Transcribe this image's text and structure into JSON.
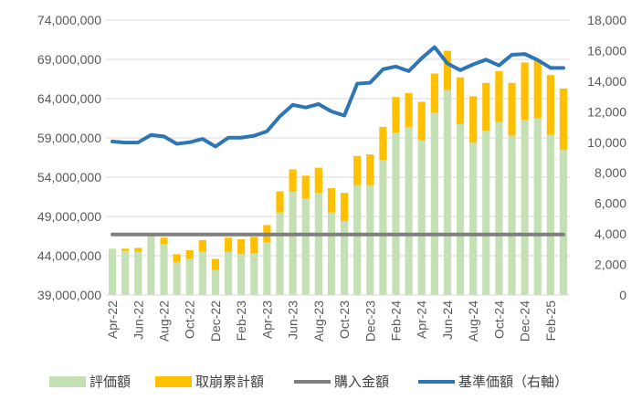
{
  "chart_data": {
    "type": "bar+line",
    "months": [
      "Apr-22",
      "May-22",
      "Jun-22",
      "Jul-22",
      "Aug-22",
      "Sep-22",
      "Oct-22",
      "Nov-22",
      "Dec-22",
      "Jan-23",
      "Feb-23",
      "Mar-23",
      "Apr-23",
      "May-23",
      "Jun-23",
      "Jul-23",
      "Aug-23",
      "Sep-23",
      "Oct-23",
      "Nov-23",
      "Dec-23",
      "Jan-24",
      "Feb-24",
      "Mar-24",
      "Apr-24",
      "May-24",
      "Jun-24",
      "Jul-24",
      "Aug-24",
      "Sep-24",
      "Oct-24",
      "Nov-24",
      "Dec-24",
      "Jan-25",
      "Feb-25",
      "Mar-25"
    ],
    "x_tick_labels": [
      "Apr-22",
      "Jun-22",
      "Aug-22",
      "Oct-22",
      "Dec-22",
      "Feb-23",
      "Apr-23",
      "Jun-23",
      "Aug-23",
      "Oct-23",
      "Dec-23",
      "Feb-24",
      "Apr-24",
      "Jun-24",
      "Aug-24",
      "Oct-24",
      "Dec-24",
      "Feb-25"
    ],
    "y_left": {
      "min": 39000000,
      "max": 74000000,
      "step": 5000000,
      "tick_labels": [
        "39,000,000",
        "44,000,000",
        "49,000,000",
        "54,000,000",
        "59,000,000",
        "64,000,000",
        "69,000,000",
        "74,000,000"
      ]
    },
    "y_right": {
      "min": 0,
      "max": 18000,
      "step": 2000,
      "tick_labels": [
        "0",
        "2,000",
        "4,000",
        "6,000",
        "8,000",
        "10,000",
        "12,000",
        "14,000",
        "16,000",
        "18,000"
      ]
    },
    "grid": "horizontal",
    "legend_position": "bottom",
    "series": [
      {
        "name": "評価額",
        "kind": "stacked-bar",
        "axis": "left",
        "color": "#c5e0b4",
        "values": [
          44900000,
          44600000,
          44500000,
          46600000,
          45500000,
          43200000,
          43600000,
          44500000,
          42200000,
          44500000,
          44200000,
          44300000,
          45700000,
          49500000,
          52200000,
          51300000,
          52000000,
          49500000,
          48400000,
          53000000,
          53000000,
          56200000,
          59700000,
          60400000,
          58700000,
          62200000,
          65100000,
          60800000,
          58400000,
          59900000,
          61000000,
          59300000,
          61300000,
          61500000,
          59400000,
          57500000
        ]
      },
      {
        "name": "取崩累計額",
        "kind": "stacked-bar",
        "axis": "left",
        "color": "#ffc000",
        "values": [
          0,
          300000,
          500000,
          0,
          800000,
          1000000,
          1100000,
          1500000,
          1400000,
          1800000,
          1900000,
          2100000,
          2200000,
          2700000,
          2800000,
          2900000,
          3200000,
          3100000,
          3600000,
          3700000,
          3900000,
          4200000,
          4500000,
          4300000,
          4900000,
          5000000,
          5000000,
          5900000,
          5900000,
          6100000,
          6500000,
          6700000,
          7300000,
          7400000,
          7600000,
          7800000
        ]
      },
      {
        "name": "購入金額",
        "kind": "line",
        "axis": "left",
        "color": "#7f7f7f",
        "values": [
          46700000,
          46700000,
          46700000,
          46700000,
          46700000,
          46700000,
          46700000,
          46700000,
          46700000,
          46700000,
          46700000,
          46700000,
          46700000,
          46700000,
          46700000,
          46700000,
          46700000,
          46700000,
          46700000,
          46700000,
          46700000,
          46700000,
          46700000,
          46700000,
          46700000,
          46700000,
          46700000,
          46700000,
          46700000,
          46700000,
          46700000,
          46700000,
          46700000,
          46700000,
          46700000,
          46700000
        ]
      },
      {
        "name": "基準価額（右軸）",
        "kind": "line",
        "axis": "right",
        "color": "#2e75b6",
        "values": [
          10050,
          9980,
          9990,
          10480,
          10380,
          9900,
          10000,
          10220,
          9720,
          10300,
          10300,
          10430,
          10720,
          11700,
          12450,
          12280,
          12500,
          12020,
          11750,
          13840,
          13900,
          14780,
          14960,
          14660,
          15500,
          16230,
          15160,
          14720,
          15100,
          15410,
          15030,
          15730,
          15780,
          15390,
          14870,
          14870
        ]
      }
    ]
  }
}
